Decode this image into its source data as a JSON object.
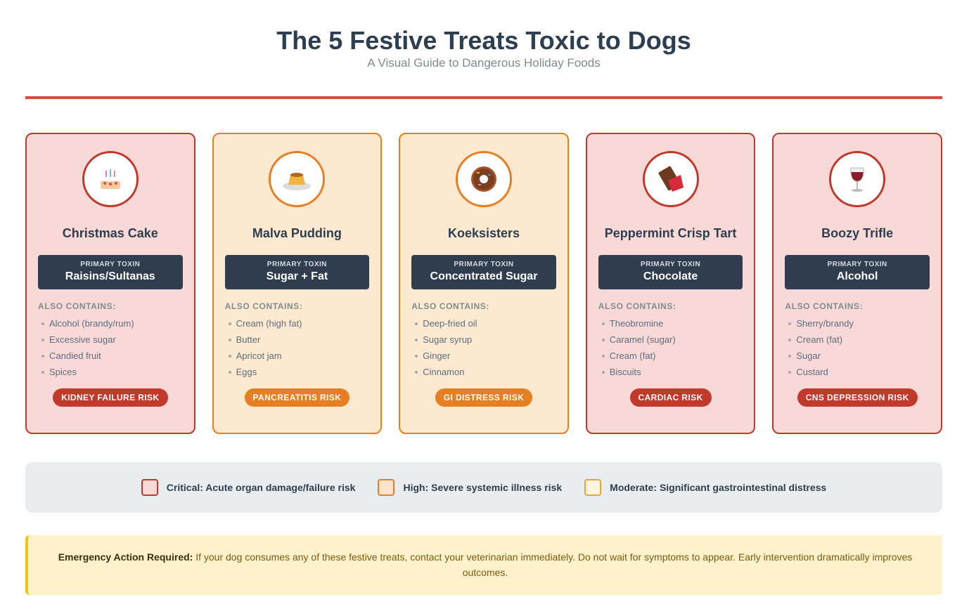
{
  "header": {
    "title": "The 5 Festive Treats Toxic to Dogs",
    "subtitle": "A Visual Guide to Dangerous Holiday Foods"
  },
  "cards": [
    {
      "name": "Christmas Cake",
      "level": "critical",
      "toxin_label": "PRIMARY TOXIN",
      "toxin": "Raisins/Sultanas",
      "also_label": "ALSO CONTAINS:",
      "also": [
        "Alcohol (brandy/rum)",
        "Excessive sugar",
        "Candied fruit",
        "Spices"
      ],
      "risk": "KIDNEY FAILURE RISK"
    },
    {
      "name": "Malva Pudding",
      "level": "high",
      "toxin_label": "PRIMARY TOXIN",
      "toxin": "Sugar + Fat",
      "also_label": "ALSO CONTAINS:",
      "also": [
        "Cream (high fat)",
        "Butter",
        "Apricot jam",
        "Eggs"
      ],
      "risk": "PANCREATITIS RISK"
    },
    {
      "name": "Koeksisters",
      "level": "high",
      "toxin_label": "PRIMARY TOXIN",
      "toxin": "Concentrated Sugar",
      "also_label": "ALSO CONTAINS:",
      "also": [
        "Deep-fried oil",
        "Sugar syrup",
        "Ginger",
        "Cinnamon"
      ],
      "risk": "GI DISTRESS RISK"
    },
    {
      "name": "Peppermint Crisp Tart",
      "level": "critical",
      "toxin_label": "PRIMARY TOXIN",
      "toxin": "Chocolate",
      "also_label": "ALSO CONTAINS:",
      "also": [
        "Theobromine",
        "Caramel (sugar)",
        "Cream (fat)",
        "Biscuits"
      ],
      "risk": "CARDIAC RISK"
    },
    {
      "name": "Boozy Trifle",
      "level": "critical",
      "toxin_label": "PRIMARY TOXIN",
      "toxin": "Alcohol",
      "also_label": "ALSO CONTAINS:",
      "also": [
        "Sherry/brandy",
        "Cream (fat)",
        "Sugar",
        "Custard"
      ],
      "risk": "CNS DEPRESSION RISK"
    }
  ],
  "legend": [
    {
      "level": "critical",
      "label": "Critical: Acute organ damage/failure risk"
    },
    {
      "level": "high",
      "label": "High: Severe systemic illness risk"
    },
    {
      "level": "moderate",
      "label": "Moderate: Significant gastrointestinal distress"
    }
  ],
  "emergency": {
    "label": "Emergency Action Required:",
    "text": "If your dog consumes any of these festive treats, contact your veterinarian immediately. Do not wait for symptoms to appear. Early intervention dramatically improves outcomes."
  }
}
